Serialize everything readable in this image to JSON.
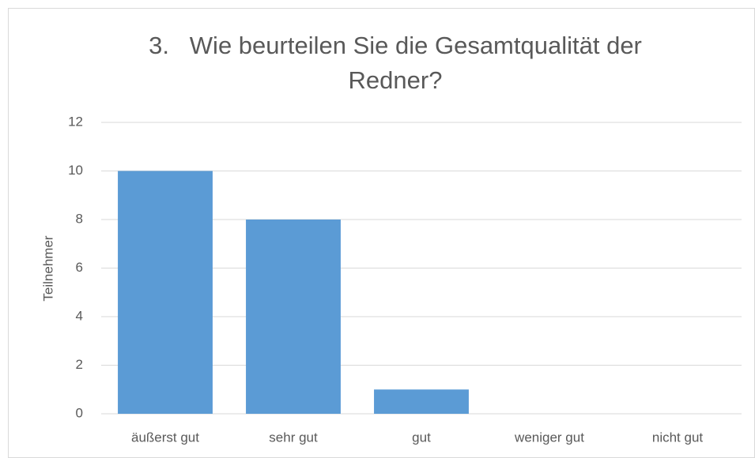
{
  "chart_data": {
    "type": "bar",
    "title": "3.   Wie beurteilen Sie die Gesamtqualität der Redner?",
    "y_label": "Teilnehmer",
    "categories": [
      "äußerst gut",
      "sehr gut",
      "gut",
      "weniger gut",
      "nicht gut"
    ],
    "values": [
      10,
      8,
      1,
      0,
      0
    ],
    "color": "#5b9bd5",
    "ylim": [
      0,
      12
    ],
    "yticks": [
      0,
      2,
      4,
      6,
      8,
      10,
      12
    ],
    "grid": true
  }
}
